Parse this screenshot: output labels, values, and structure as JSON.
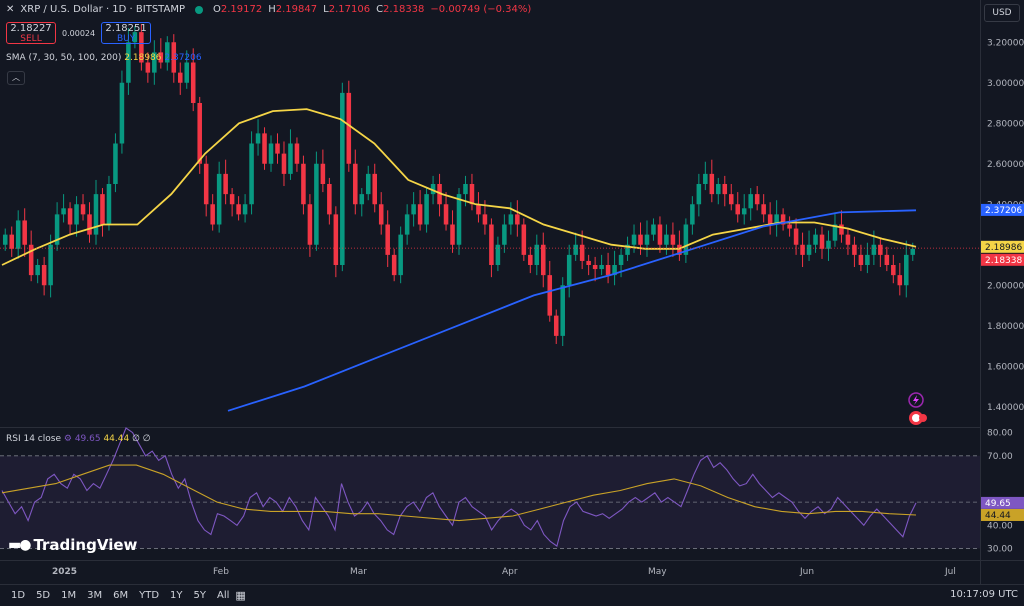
{
  "header": {
    "symbol": "XRP / U.S. Dollar · 1D · BITSTAMP",
    "o_label": "O",
    "o": "2.19172",
    "h_label": "H",
    "h": "2.19847",
    "l_label": "L",
    "l": "2.17106",
    "c_label": "C",
    "c": "2.18338",
    "change": "−0.00749 (−0.34%)"
  },
  "trade": {
    "sell_price": "2.18227",
    "sell_label": "SELL",
    "spread": "0.00024",
    "buy_price": "2.18251",
    "buy_label": "BUY"
  },
  "sma_legend": {
    "label": "SMA (7, 30, 50, 100, 200)",
    "v1": "2.18986",
    "v2": "2.37206"
  },
  "rsi_legend": {
    "label": "RSI 14 close",
    "v1": "49.65",
    "v2": "44.44",
    "extra": "∅ ∅"
  },
  "currency": "USD",
  "logo_text": "TradingView",
  "timeframes": [
    "1D",
    "5D",
    "1M",
    "3M",
    "6M",
    "YTD",
    "1Y",
    "5Y",
    "All"
  ],
  "clock": "10:17:09 UTC",
  "colors": {
    "background": "#131722",
    "up": "#089981",
    "down": "#f23645",
    "sma_short": "#f5d547",
    "sma_long": "#2962ff",
    "rsi": "#7e57c2",
    "rsi_ma": "#c9a227"
  },
  "chart_data": [
    {
      "type": "candlestick",
      "ylim": [
        1.3,
        3.3
      ],
      "y_ticks": [
        "3.20000",
        "3.00000",
        "2.80000",
        "2.60000",
        "2.40000",
        "2.20000",
        "2.00000",
        "1.80000",
        "1.60000",
        "1.40000"
      ],
      "x_labels": [
        "2025",
        "Feb",
        "Mar",
        "Apr",
        "May",
        "Jun",
        "Jul"
      ],
      "price_tags": [
        {
          "value": 2.37206,
          "label": "2.37206",
          "color": "#2962ff"
        },
        {
          "value": 2.18986,
          "label": "2.18986",
          "color": "#f5d547"
        },
        {
          "value": 2.18338,
          "label": "2.18338",
          "color": "#f23645"
        }
      ],
      "close": [
        2.25,
        2.18,
        2.32,
        2.2,
        2.05,
        2.1,
        2.0,
        2.2,
        2.35,
        2.38,
        2.3,
        2.4,
        2.35,
        2.25,
        2.45,
        2.3,
        2.5,
        2.7,
        3.0,
        3.2,
        3.25,
        3.1,
        3.05,
        3.15,
        3.1,
        3.2,
        3.05,
        3.0,
        3.1,
        2.9,
        2.6,
        2.4,
        2.3,
        2.55,
        2.45,
        2.4,
        2.35,
        2.4,
        2.7,
        2.75,
        2.6,
        2.7,
        2.65,
        2.55,
        2.7,
        2.6,
        2.4,
        2.2,
        2.6,
        2.5,
        2.35,
        2.1,
        2.95,
        2.6,
        2.4,
        2.45,
        2.55,
        2.4,
        2.3,
        2.15,
        2.05,
        2.25,
        2.35,
        2.4,
        2.3,
        2.45,
        2.5,
        2.4,
        2.3,
        2.2,
        2.45,
        2.5,
        2.4,
        2.35,
        2.3,
        2.1,
        2.2,
        2.3,
        2.35,
        2.3,
        2.15,
        2.1,
        2.2,
        2.05,
        1.85,
        1.75,
        2.0,
        2.15,
        2.2,
        2.12,
        2.1,
        2.08,
        2.1,
        2.05,
        2.1,
        2.15,
        2.2,
        2.25,
        2.2,
        2.25,
        2.3,
        2.2,
        2.25,
        2.2,
        2.15,
        2.3,
        2.4,
        2.5,
        2.55,
        2.45,
        2.5,
        2.45,
        2.4,
        2.35,
        2.38,
        2.45,
        2.4,
        2.35,
        2.3,
        2.35,
        2.3,
        2.28,
        2.2,
        2.15,
        2.2,
        2.25,
        2.18,
        2.22,
        2.3,
        2.25,
        2.2,
        2.15,
        2.1,
        2.15,
        2.2,
        2.15,
        2.1,
        2.05,
        2.0,
        2.15,
        2.18
      ],
      "sma_short": [
        2.1,
        2.18,
        2.25,
        2.3,
        2.3,
        2.45,
        2.65,
        2.8,
        2.86,
        2.87,
        2.82,
        2.7,
        2.52,
        2.45,
        2.4,
        2.38,
        2.3,
        2.25,
        2.2,
        2.18,
        2.18,
        2.25,
        2.28,
        2.31,
        2.31,
        2.28,
        2.23,
        2.19
      ],
      "sma_long": [
        1.38,
        1.5,
        1.65,
        1.8,
        1.95,
        2.05,
        2.17,
        2.29,
        2.36,
        2.37
      ]
    },
    {
      "type": "line",
      "ylim": [
        25,
        82
      ],
      "y_ticks": [
        "80.00",
        "70.00",
        "50.00",
        "40.00",
        "30.00"
      ],
      "value_tags": [
        {
          "value": 49.65,
          "label": "49.65",
          "color": "#7e57c2"
        },
        {
          "value": 44.44,
          "label": "44.44",
          "color": "#c9a227"
        }
      ],
      "rsi": [
        55,
        50,
        45,
        48,
        42,
        50,
        52,
        60,
        62,
        58,
        56,
        62,
        60,
        55,
        58,
        56,
        62,
        68,
        75,
        82,
        80,
        75,
        70,
        72,
        68,
        70,
        62,
        56,
        60,
        50,
        42,
        38,
        36,
        45,
        44,
        42,
        40,
        44,
        52,
        54,
        48,
        52,
        50,
        46,
        52,
        48,
        42,
        38,
        52,
        48,
        44,
        38,
        58,
        50,
        44,
        46,
        50,
        45,
        42,
        38,
        36,
        44,
        48,
        50,
        46,
        52,
        54,
        48,
        44,
        40,
        50,
        52,
        48,
        46,
        44,
        38,
        42,
        45,
        47,
        45,
        40,
        38,
        42,
        36,
        33,
        31,
        42,
        48,
        50,
        46,
        45,
        44,
        45,
        43,
        45,
        47,
        50,
        52,
        50,
        52,
        54,
        50,
        52,
        50,
        48,
        55,
        62,
        68,
        70,
        65,
        67,
        64,
        60,
        57,
        58,
        62,
        58,
        55,
        52,
        54,
        52,
        50,
        46,
        43,
        46,
        48,
        45,
        47,
        52,
        49,
        46,
        43,
        40,
        44,
        47,
        44,
        41,
        38,
        35,
        44,
        49.65
      ],
      "rsi_ma": [
        54,
        56,
        58,
        62,
        66,
        66,
        62,
        56,
        50,
        47,
        46,
        46,
        46,
        45,
        45,
        44,
        43,
        42,
        43,
        44,
        47,
        50,
        53,
        55,
        58,
        60,
        57,
        52,
        48,
        46,
        45,
        46,
        46,
        45,
        44.44
      ]
    }
  ]
}
